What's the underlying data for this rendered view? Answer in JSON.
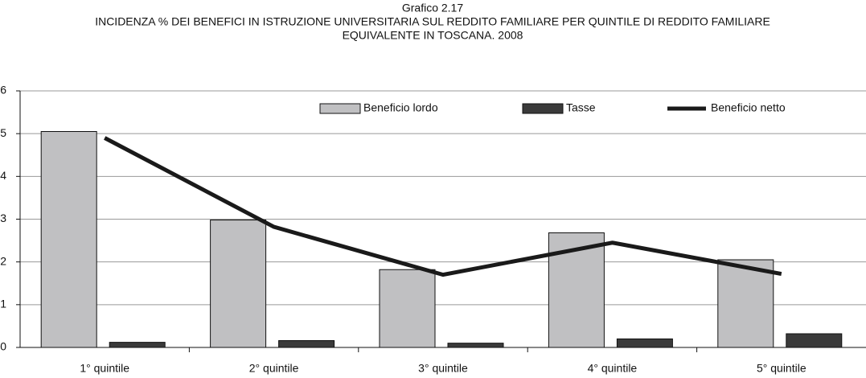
{
  "chart_data": {
    "type": "bar-line",
    "title": "Grafico 2.17",
    "subtitle": [
      "INCIDENZA % DEI BENEFICI IN ISTRUZIONE UNIVERSITARIA SUL REDDITO FAMILIARE PER QUINTILE DI REDDITO FAMILIARE",
      "EQUIVALENTE IN TOSCANA. 2008"
    ],
    "categories": [
      "1° quintile",
      "2° quintile",
      "3° quintile",
      "4° quintile",
      "5° quintile"
    ],
    "series": [
      {
        "name": "Beneficio lordo",
        "type": "bar",
        "color": "#c0c0c2",
        "values": [
          5.05,
          2.98,
          1.82,
          2.68,
          2.05
        ]
      },
      {
        "name": "Tasse",
        "type": "bar",
        "color": "#3a3a3a",
        "values": [
          0.12,
          0.16,
          0.1,
          0.2,
          0.32
        ]
      },
      {
        "name": "Beneficio netto",
        "type": "line",
        "color": "#1a1a1a",
        "values": [
          4.9,
          2.82,
          1.7,
          2.45,
          1.72
        ]
      }
    ],
    "ylim": [
      0,
      6
    ],
    "yticks": [
      0,
      1,
      2,
      3,
      4,
      5,
      6
    ],
    "grid": true,
    "legend": "top"
  }
}
